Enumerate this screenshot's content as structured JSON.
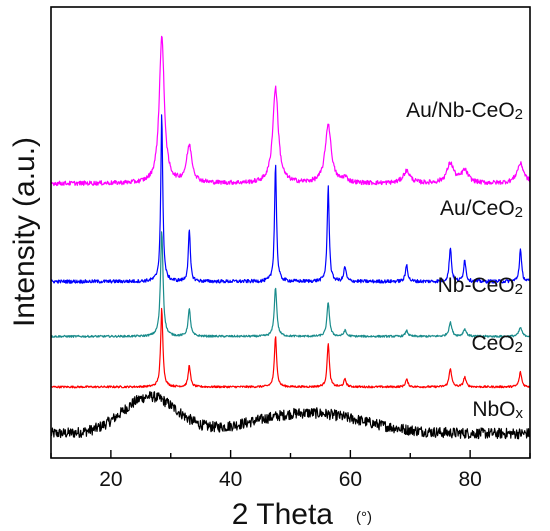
{
  "chart_data": {
    "type": "line",
    "title": "",
    "xlabel": "2 Theta",
    "xlabel_unit": "(°)",
    "ylabel": "Intensity (a.u.)",
    "xlim": [
      10,
      90
    ],
    "xticks": [
      "20",
      "40",
      "60",
      "80"
    ],
    "xtick_values": [
      20,
      40,
      60,
      80
    ],
    "yticks": "none",
    "grid": false,
    "legend": "inline labels at right of each trace",
    "series": [
      {
        "name": "NbOx",
        "label_main": "NbO",
        "label_sub": "x",
        "color": "#000000",
        "profile": "amorphous",
        "baseline": 0.0,
        "broad_humps": [
          {
            "center": 26.5,
            "width": 4.5,
            "height": 0.75
          },
          {
            "center": 53.0,
            "width": 9.0,
            "height": 0.42
          }
        ],
        "noise": 0.11,
        "peaks": []
      },
      {
        "name": "CeO2",
        "label_main": "CeO",
        "label_sub": "2",
        "color": "#ff0000",
        "profile": "crystalline",
        "baseline": 0.95,
        "noise": 0.02,
        "peaks": [
          {
            "x": 28.5,
            "h": 1.6,
            "w": 0.22
          },
          {
            "x": 33.1,
            "h": 0.45,
            "w": 0.22
          },
          {
            "x": 47.5,
            "h": 1.05,
            "w": 0.22
          },
          {
            "x": 56.3,
            "h": 0.9,
            "w": 0.22
          },
          {
            "x": 59.1,
            "h": 0.15,
            "w": 0.25
          },
          {
            "x": 69.4,
            "h": 0.15,
            "w": 0.25
          },
          {
            "x": 76.7,
            "h": 0.38,
            "w": 0.25
          },
          {
            "x": 79.1,
            "h": 0.2,
            "w": 0.25
          },
          {
            "x": 88.4,
            "h": 0.3,
            "w": 0.25
          }
        ]
      },
      {
        "name": "Nb-CeO2",
        "label_main": "Nb-CeO",
        "label_sub": "2",
        "color": "#1a8c8c",
        "profile": "crystalline",
        "baseline": 1.98,
        "noise": 0.02,
        "peaks": [
          {
            "x": 28.5,
            "h": 2.15,
            "w": 0.25
          },
          {
            "x": 33.1,
            "h": 0.55,
            "w": 0.25
          },
          {
            "x": 47.5,
            "h": 1.0,
            "w": 0.25
          },
          {
            "x": 56.3,
            "h": 0.7,
            "w": 0.25
          },
          {
            "x": 59.1,
            "h": 0.12,
            "w": 0.25
          },
          {
            "x": 69.4,
            "h": 0.12,
            "w": 0.25
          },
          {
            "x": 76.7,
            "h": 0.28,
            "w": 0.3
          },
          {
            "x": 79.1,
            "h": 0.15,
            "w": 0.3
          },
          {
            "x": 88.4,
            "h": 0.18,
            "w": 0.3
          }
        ]
      },
      {
        "name": "Au/CeO2",
        "label_main": "Au/CeO",
        "label_sub": "2",
        "color": "#0000ff",
        "profile": "crystalline",
        "baseline": 3.1,
        "noise": 0.035,
        "peaks": [
          {
            "x": 28.5,
            "h": 3.4,
            "w": 0.2
          },
          {
            "x": 33.1,
            "h": 1.05,
            "w": 0.2
          },
          {
            "x": 47.5,
            "h": 2.4,
            "w": 0.2
          },
          {
            "x": 56.3,
            "h": 1.95,
            "w": 0.2
          },
          {
            "x": 59.1,
            "h": 0.3,
            "w": 0.22
          },
          {
            "x": 69.4,
            "h": 0.35,
            "w": 0.22
          },
          {
            "x": 76.7,
            "h": 0.7,
            "w": 0.22
          },
          {
            "x": 79.1,
            "h": 0.45,
            "w": 0.22
          },
          {
            "x": 88.4,
            "h": 0.65,
            "w": 0.22
          }
        ]
      },
      {
        "name": "Au/Nb-CeO2",
        "label_main": "Au/Nb-CeO",
        "label_sub": "2",
        "color": "#ff00ff",
        "profile": "crystalline",
        "baseline": 5.1,
        "noise": 0.045,
        "peaks": [
          {
            "x": 28.5,
            "h": 3.0,
            "w": 0.5
          },
          {
            "x": 33.1,
            "h": 0.75,
            "w": 0.55
          },
          {
            "x": 47.5,
            "h": 1.95,
            "w": 0.55
          },
          {
            "x": 56.3,
            "h": 1.2,
            "w": 0.6
          },
          {
            "x": 59.1,
            "h": 0.1,
            "w": 0.5
          },
          {
            "x": 69.4,
            "h": 0.25,
            "w": 0.7
          },
          {
            "x": 76.7,
            "h": 0.4,
            "w": 0.7
          },
          {
            "x": 79.1,
            "h": 0.25,
            "w": 0.7
          },
          {
            "x": 88.4,
            "h": 0.4,
            "w": 0.7
          }
        ]
      }
    ],
    "ylim": [
      -0.5,
      8.7
    ]
  }
}
